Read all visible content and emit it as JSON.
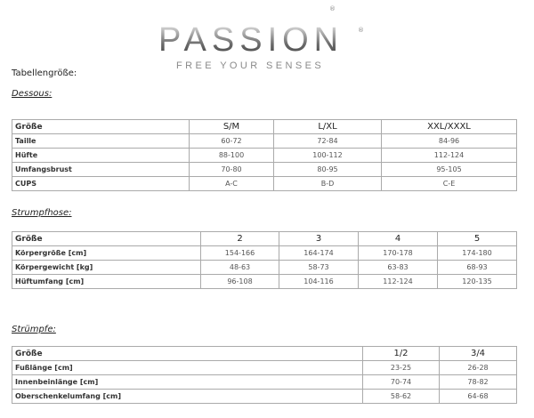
{
  "logo": {
    "word": "PASSION",
    "tagline": "FREE YOUR SENSES",
    "reg": "®"
  },
  "heading": "Tabellengröße:",
  "dessous": {
    "title": "Dessous:",
    "header": [
      "Größe",
      "S/M",
      "L/XL",
      "XXL/XXXL"
    ],
    "rows": [
      [
        "Taille",
        "60-72",
        "72-84",
        "84-96"
      ],
      [
        "Hüfte",
        "88-100",
        "100-112",
        "112-124"
      ],
      [
        "Umfangsbrust",
        "70-80",
        "80-95",
        "95-105"
      ],
      [
        "CUPS",
        "A-C",
        "B-D",
        "C-E"
      ]
    ]
  },
  "strumpfhose": {
    "title": "Strumpfhose:",
    "header": [
      "Größe",
      "2",
      "3",
      "4",
      "5"
    ],
    "rows": [
      [
        "Körpergröße [cm]",
        "154-166",
        "164-174",
        "170-178",
        "174-180"
      ],
      [
        "Körpergewicht [kg]",
        "48-63",
        "58-73",
        "63-83",
        "68-93"
      ],
      [
        "Hüftumfang [cm]",
        "96-108",
        "104-116",
        "112-124",
        "120-135"
      ]
    ]
  },
  "struempfe": {
    "title": "Strümpfe:",
    "header": [
      "Größe",
      "1/2",
      "3/4"
    ],
    "rows": [
      [
        "Fußlänge [cm]",
        "23-25",
        "26-28"
      ],
      [
        "Innenbeinlänge [cm]",
        "70-74",
        "78-82"
      ],
      [
        "Oberschenkelumfang [cm]",
        "58-62",
        "64-68"
      ]
    ]
  }
}
